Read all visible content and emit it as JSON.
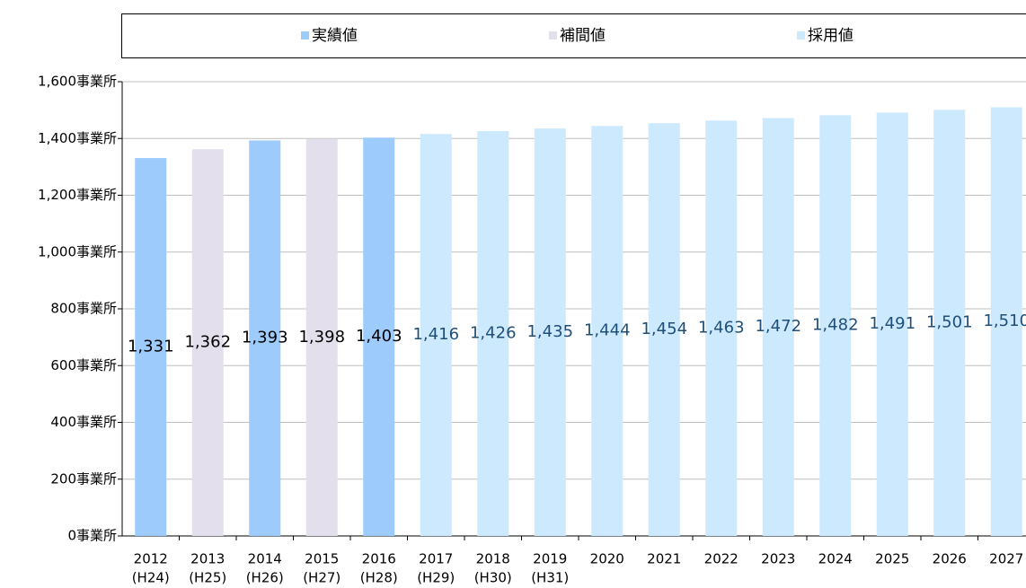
{
  "chart_data": {
    "type": "bar",
    "categories": [
      "2012",
      "2013",
      "2014",
      "2015",
      "2016",
      "2017",
      "2018",
      "2019",
      "2020",
      "2021",
      "2022",
      "2023",
      "2024",
      "2025",
      "2026",
      "2027"
    ],
    "era_labels": [
      "(H24)",
      "(H25)",
      "(H26)",
      "(H27)",
      "(H28)",
      "(H29)",
      "(H30)",
      "(H31)",
      null,
      null,
      null,
      null,
      null,
      null,
      null,
      null
    ],
    "series": [
      {
        "name": "実績値",
        "color": "#9ccbfc",
        "label_color": "#000000",
        "values": [
          1331,
          null,
          1393,
          null,
          1403,
          null,
          null,
          null,
          null,
          null,
          null,
          null,
          null,
          null,
          null,
          null
        ],
        "value_labels": [
          "1,331",
          null,
          "1,393",
          null,
          "1,403",
          null,
          null,
          null,
          null,
          null,
          null,
          null,
          null,
          null,
          null,
          null
        ]
      },
      {
        "name": "補間値",
        "color": "#e4dfec",
        "label_color": "#000000",
        "values": [
          null,
          1362,
          null,
          1398,
          null,
          null,
          null,
          null,
          null,
          null,
          null,
          null,
          null,
          null,
          null,
          null
        ],
        "value_labels": [
          null,
          "1,362",
          null,
          "1,398",
          null,
          null,
          null,
          null,
          null,
          null,
          null,
          null,
          null,
          null,
          null,
          null
        ]
      },
      {
        "name": "採用値",
        "color": "#cde9fd",
        "label_color": "#1f4e79",
        "values": [
          null,
          null,
          null,
          null,
          null,
          1416,
          1426,
          1435,
          1444,
          1454,
          1463,
          1472,
          1482,
          1491,
          1501,
          1510
        ],
        "value_labels": [
          null,
          null,
          null,
          null,
          null,
          "1,416",
          "1,426",
          "1,435",
          "1,444",
          "1,454",
          "1,463",
          "1,472",
          "1,482",
          "1,491",
          "1,501",
          "1,510"
        ]
      }
    ],
    "ylim": [
      0,
      1600
    ],
    "yticks": [
      {
        "value": 0,
        "label": "0事業所"
      },
      {
        "value": 200,
        "label": "200事業所"
      },
      {
        "value": 400,
        "label": "400事業所"
      },
      {
        "value": 600,
        "label": "600事業所"
      },
      {
        "value": 800,
        "label": "800事業所"
      },
      {
        "value": 1000,
        "label": "1,000事業所"
      },
      {
        "value": 1200,
        "label": "1,200事業所"
      },
      {
        "value": 1400,
        "label": "1,400事業所"
      },
      {
        "value": 1600,
        "label": "1,600事業所"
      }
    ],
    "grid": true,
    "legend": "top"
  }
}
